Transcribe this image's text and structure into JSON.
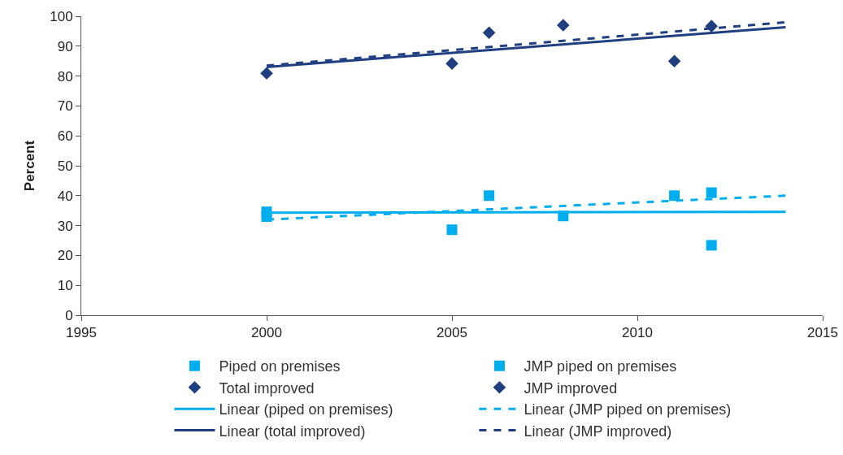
{
  "chart_data": {
    "type": "scatter",
    "ylabel": "Percent",
    "xlim": [
      1995,
      2015
    ],
    "xticks": [
      1995,
      2000,
      2005,
      2010,
      2015
    ],
    "ylim": [
      0,
      100
    ],
    "yticks": [
      0,
      10,
      20,
      30,
      40,
      50,
      60,
      70,
      80,
      90,
      100
    ],
    "grid": false,
    "legend": "bottom",
    "series": [
      {
        "name": "Piped on premises",
        "marker": "square",
        "color": "#00aeef",
        "x": [
          2000,
          2005,
          2006,
          2008,
          2011,
          2012
        ],
        "values": [
          34.6,
          28.6,
          40,
          33.2,
          40,
          23.4
        ]
      },
      {
        "name": "JMP piped on premises",
        "marker": "square",
        "color": "#00aeef",
        "x": [
          2000,
          2012
        ],
        "values": [
          33,
          41
        ]
      },
      {
        "name": "Total improved",
        "marker": "diamond",
        "color": "#1f3f80",
        "x": [
          2000,
          2005,
          2008,
          2011
        ],
        "values": [
          80.9,
          84.2,
          97,
          85
        ]
      },
      {
        "name": "JMP improved",
        "marker": "diamond",
        "color": "#1f3f80",
        "x": [
          2006,
          2012
        ],
        "values": [
          94.5,
          96.7
        ]
      },
      {
        "name": "Linear (piped on premises)",
        "type": "line",
        "line_style": "solid",
        "color": "#00aeef",
        "x": [
          2000,
          2014
        ],
        "values": [
          34.3,
          34.6
        ]
      },
      {
        "name": "Linear (JMP piped on premises)",
        "type": "line",
        "line_style": "dashed",
        "color": "#00aeef",
        "x": [
          2000,
          2014
        ],
        "values": [
          32,
          40
        ]
      },
      {
        "name": "Linear (total improved)",
        "type": "line",
        "line_style": "solid",
        "color": "#1f3f80",
        "x": [
          2000,
          2014
        ],
        "values": [
          83,
          96.3
        ]
      },
      {
        "name": "Linear (JMP improved)",
        "type": "line",
        "line_style": "dashed",
        "color": "#1f3f80",
        "x": [
          2000,
          2014
        ],
        "values": [
          83.5,
          98
        ]
      }
    ]
  }
}
